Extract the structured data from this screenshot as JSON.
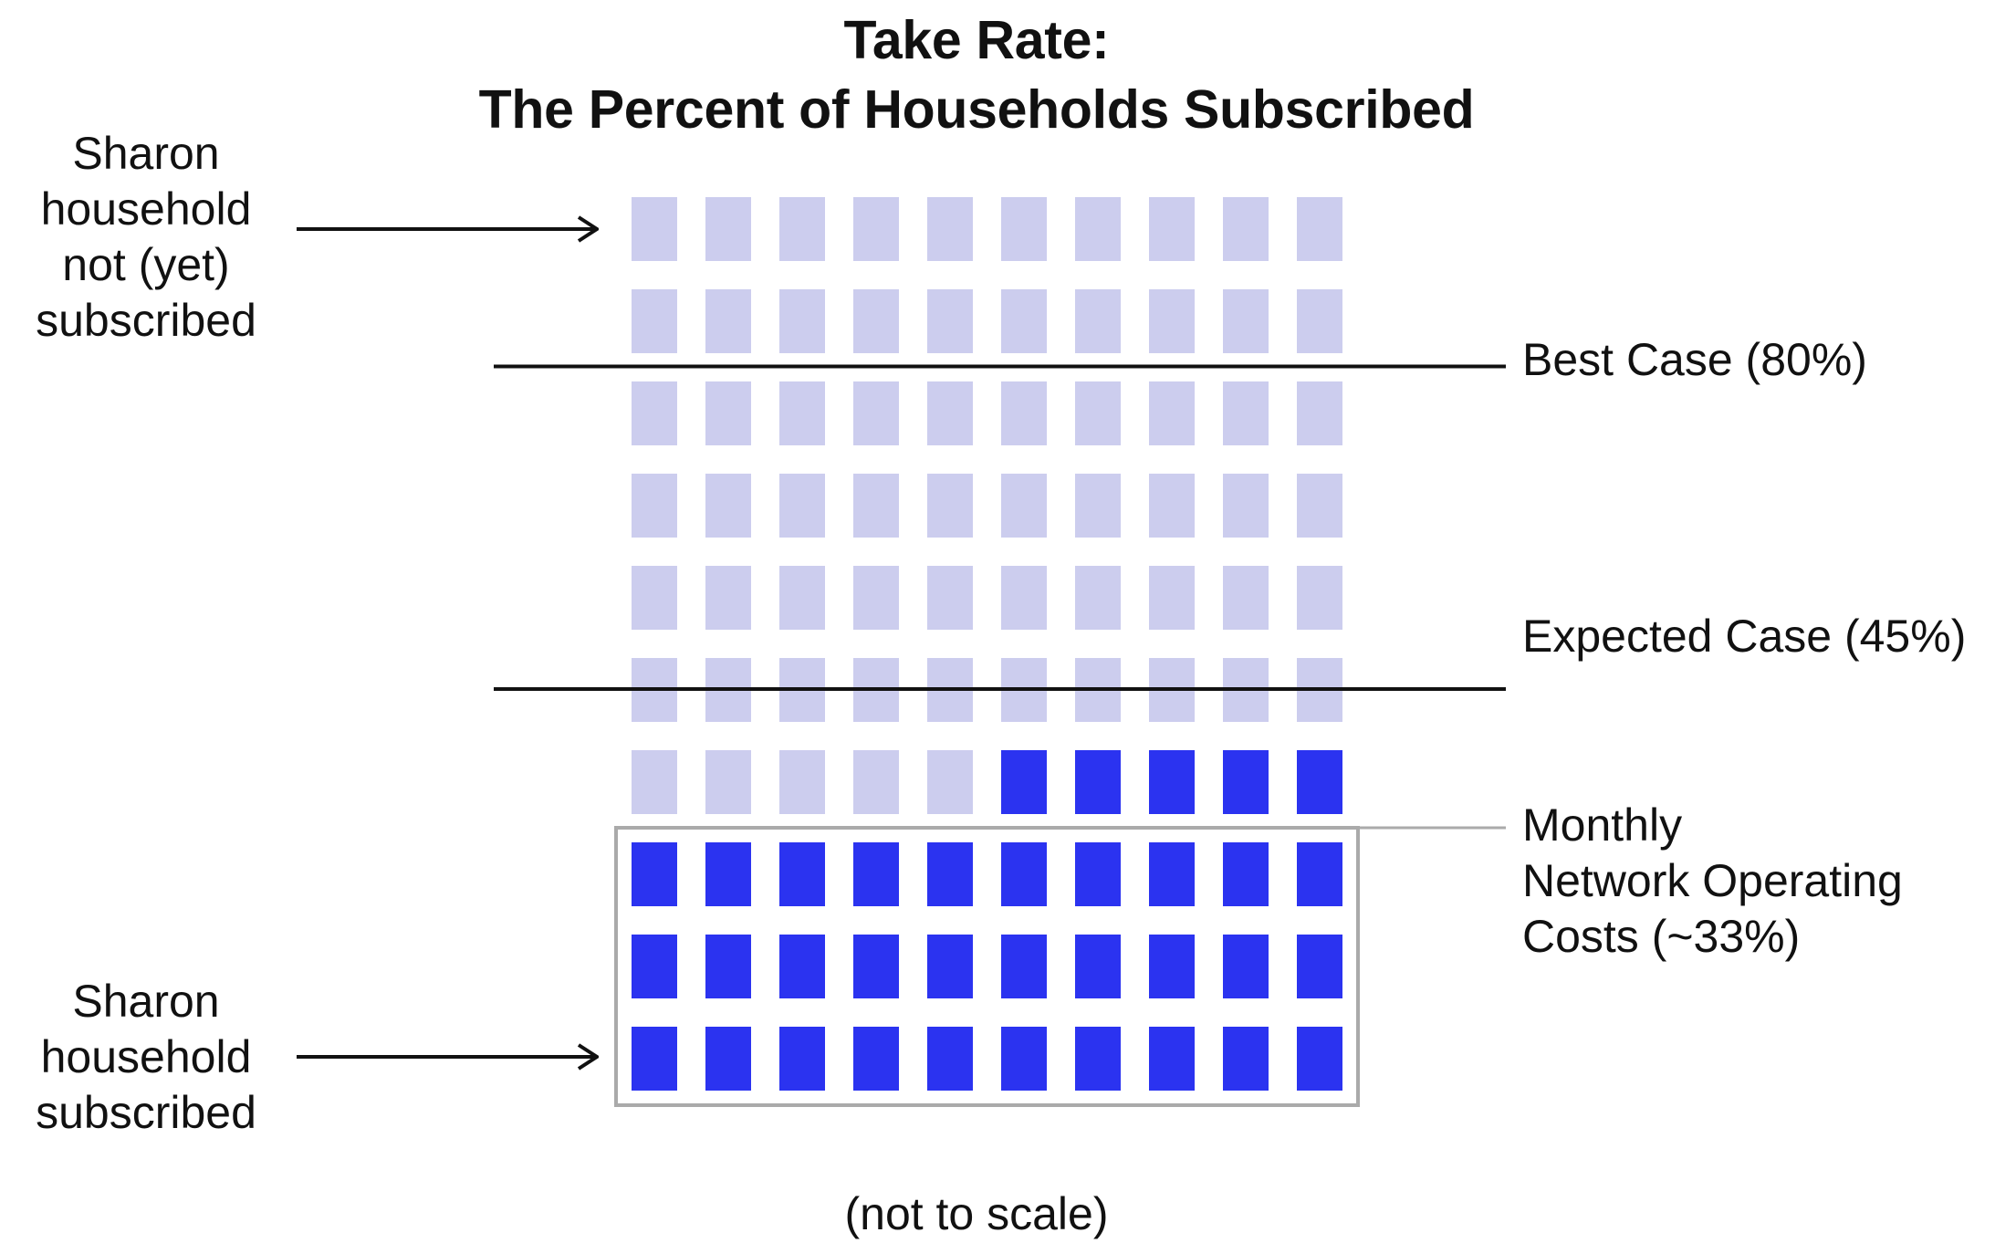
{
  "title": {
    "line1": "Take Rate:",
    "line2": "The Percent of Households Subscribed"
  },
  "labels": {
    "not_subscribed": [
      "Sharon",
      "household",
      "not (yet)",
      "subscribed"
    ],
    "subscribed": [
      "Sharon",
      "household",
      "subscribed"
    ],
    "best_case": "Best Case (80%)",
    "expected_case": "Expected Case (45%)",
    "operating_costs": [
      "Monthly",
      "Network Operating",
      "Costs (~33%)"
    ]
  },
  "footer": "(not to scale)",
  "grid": {
    "rows": 10,
    "cols": 10,
    "subscribed_count": 35,
    "total": 100
  },
  "thresholds": {
    "best_case_pct": 80,
    "expected_case_pct": 45,
    "operating_costs_pct": 33
  },
  "colors": {
    "subscribed": "#2b33f0",
    "not_subscribed": "#cccdee",
    "line": "#111111",
    "box": "#aaaaaa"
  }
}
